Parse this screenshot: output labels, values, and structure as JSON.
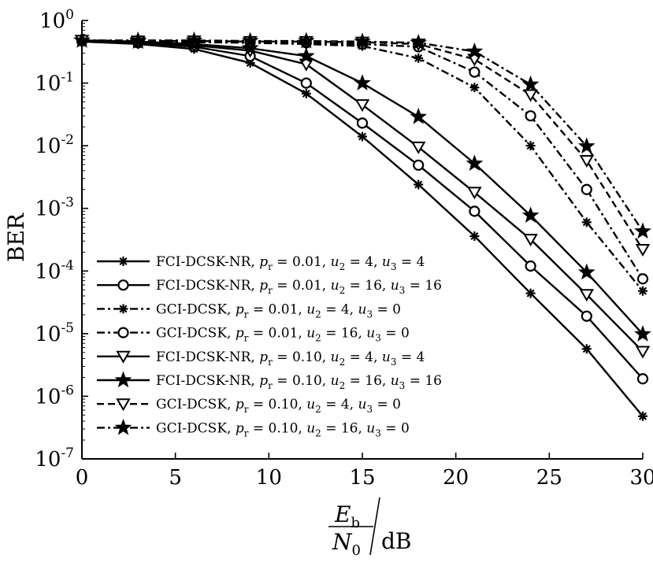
{
  "chart_data": {
    "type": "line",
    "title": "",
    "xlabel": "E_b/N_0 /dB",
    "xlabel_parts": {
      "num": "E",
      "num_sub": "b",
      "den": "N",
      "den_sub": "0",
      "unit": "dB"
    },
    "ylabel": "BER",
    "xlim": [
      0,
      30
    ],
    "ylim": [
      1e-07,
      1
    ],
    "yscale": "log",
    "grid": false,
    "legend_position": "lower-left",
    "x_ticks": [
      "0",
      "5",
      "10",
      "15",
      "20",
      "25",
      "30"
    ],
    "y_ticks": [
      {
        "base": "10",
        "exp": "0"
      },
      {
        "base": "10",
        "exp": "-1"
      },
      {
        "base": "10",
        "exp": "-2"
      },
      {
        "base": "10",
        "exp": "-3"
      },
      {
        "base": "10",
        "exp": "-4"
      },
      {
        "base": "10",
        "exp": "-5"
      },
      {
        "base": "10",
        "exp": "-6"
      },
      {
        "base": "10",
        "exp": "-7"
      }
    ],
    "x": [
      0,
      3,
      6,
      9,
      12,
      15,
      18,
      21,
      24,
      27,
      30
    ],
    "series": [
      {
        "name": "FCI-DCSK-NR,  p_r = 0.01,  u_2 = 4,  u_3 = 4",
        "scheme": "FCI-DCSK-NR",
        "pr": "0.01",
        "u2": "4",
        "u3": "4",
        "marker": "asterisk",
        "linestyle": "solid",
        "values": [
          0.46,
          0.42,
          0.35,
          0.21,
          0.068,
          0.014,
          0.0024,
          0.00036,
          4.4e-05,
          5.7e-06,
          4.8e-07
        ]
      },
      {
        "name": "FCI-DCSK-NR,  p_r = 0.01,  u_2 = 16,  u_3 = 16",
        "scheme": "FCI-DCSK-NR",
        "pr": "0.01",
        "u2": "16",
        "u3": "16",
        "marker": "circle",
        "linestyle": "solid",
        "values": [
          0.47,
          0.44,
          0.38,
          0.27,
          0.1,
          0.023,
          0.0049,
          0.0009,
          0.00012,
          1.9e-05,
          1.9e-06
        ]
      },
      {
        "name": "GCI-DCSK,  p_r = 0.01,  u_2 = 4,  u_3 = 0",
        "scheme": "GCI-DCSK",
        "pr": "0.01",
        "u2": "4",
        "u3": "0",
        "marker": "asterisk",
        "linestyle": "dashdot",
        "values": [
          0.47,
          0.46,
          0.45,
          0.44,
          0.42,
          0.39,
          0.25,
          0.085,
          0.01,
          0.0006,
          4.8e-05
        ]
      },
      {
        "name": "GCI-DCSK,  p_r = 0.01,  u_2 = 16,  u_3 = 0",
        "scheme": "GCI-DCSK",
        "pr": "0.01",
        "u2": "16",
        "u3": "0",
        "marker": "circle",
        "linestyle": "dashdot",
        "values": [
          0.48,
          0.47,
          0.46,
          0.45,
          0.44,
          0.42,
          0.38,
          0.15,
          0.03,
          0.002,
          7.5e-05
        ]
      },
      {
        "name": "FCI-DCSK-NR,  p_r = 0.10,  u_2 = 4,  u_3 = 4",
        "scheme": "FCI-DCSK-NR",
        "pr": "0.10",
        "u2": "4",
        "u3": "4",
        "marker": "triangle-down",
        "linestyle": "solid",
        "values": [
          0.48,
          0.45,
          0.4,
          0.33,
          0.2,
          0.045,
          0.0095,
          0.0018,
          0.00032,
          4.2e-05,
          5.2e-06
        ]
      },
      {
        "name": "FCI-DCSK-NR,  p_r = 0.10,  u_2 = 16,  u_3 = 16",
        "scheme": "FCI-DCSK-NR",
        "pr": "0.10",
        "u2": "16",
        "u3": "16",
        "marker": "star",
        "linestyle": "solid",
        "values": [
          0.48,
          0.46,
          0.42,
          0.36,
          0.27,
          0.1,
          0.029,
          0.0052,
          0.00077,
          9.5e-05,
          9.8e-06
        ]
      },
      {
        "name": "GCI-DCSK,  p_r = 0.10,  u_2 = 4,  u_3 = 0",
        "scheme": "GCI-DCSK",
        "pr": "0.10",
        "u2": "4",
        "u3": "0",
        "marker": "triangle-down",
        "linestyle": "dashed",
        "values": [
          0.48,
          0.47,
          0.47,
          0.46,
          0.46,
          0.45,
          0.42,
          0.24,
          0.065,
          0.0058,
          0.00022
        ]
      },
      {
        "name": "GCI-DCSK,  p_r = 0.10,  u_2 = 16,  u_3 = 0",
        "scheme": "GCI-DCSK",
        "pr": "0.10",
        "u2": "16",
        "u3": "0",
        "marker": "star",
        "linestyle": "dashdot",
        "values": [
          0.48,
          0.48,
          0.48,
          0.47,
          0.47,
          0.46,
          0.44,
          0.32,
          0.095,
          0.0098,
          0.00043
        ]
      }
    ]
  }
}
